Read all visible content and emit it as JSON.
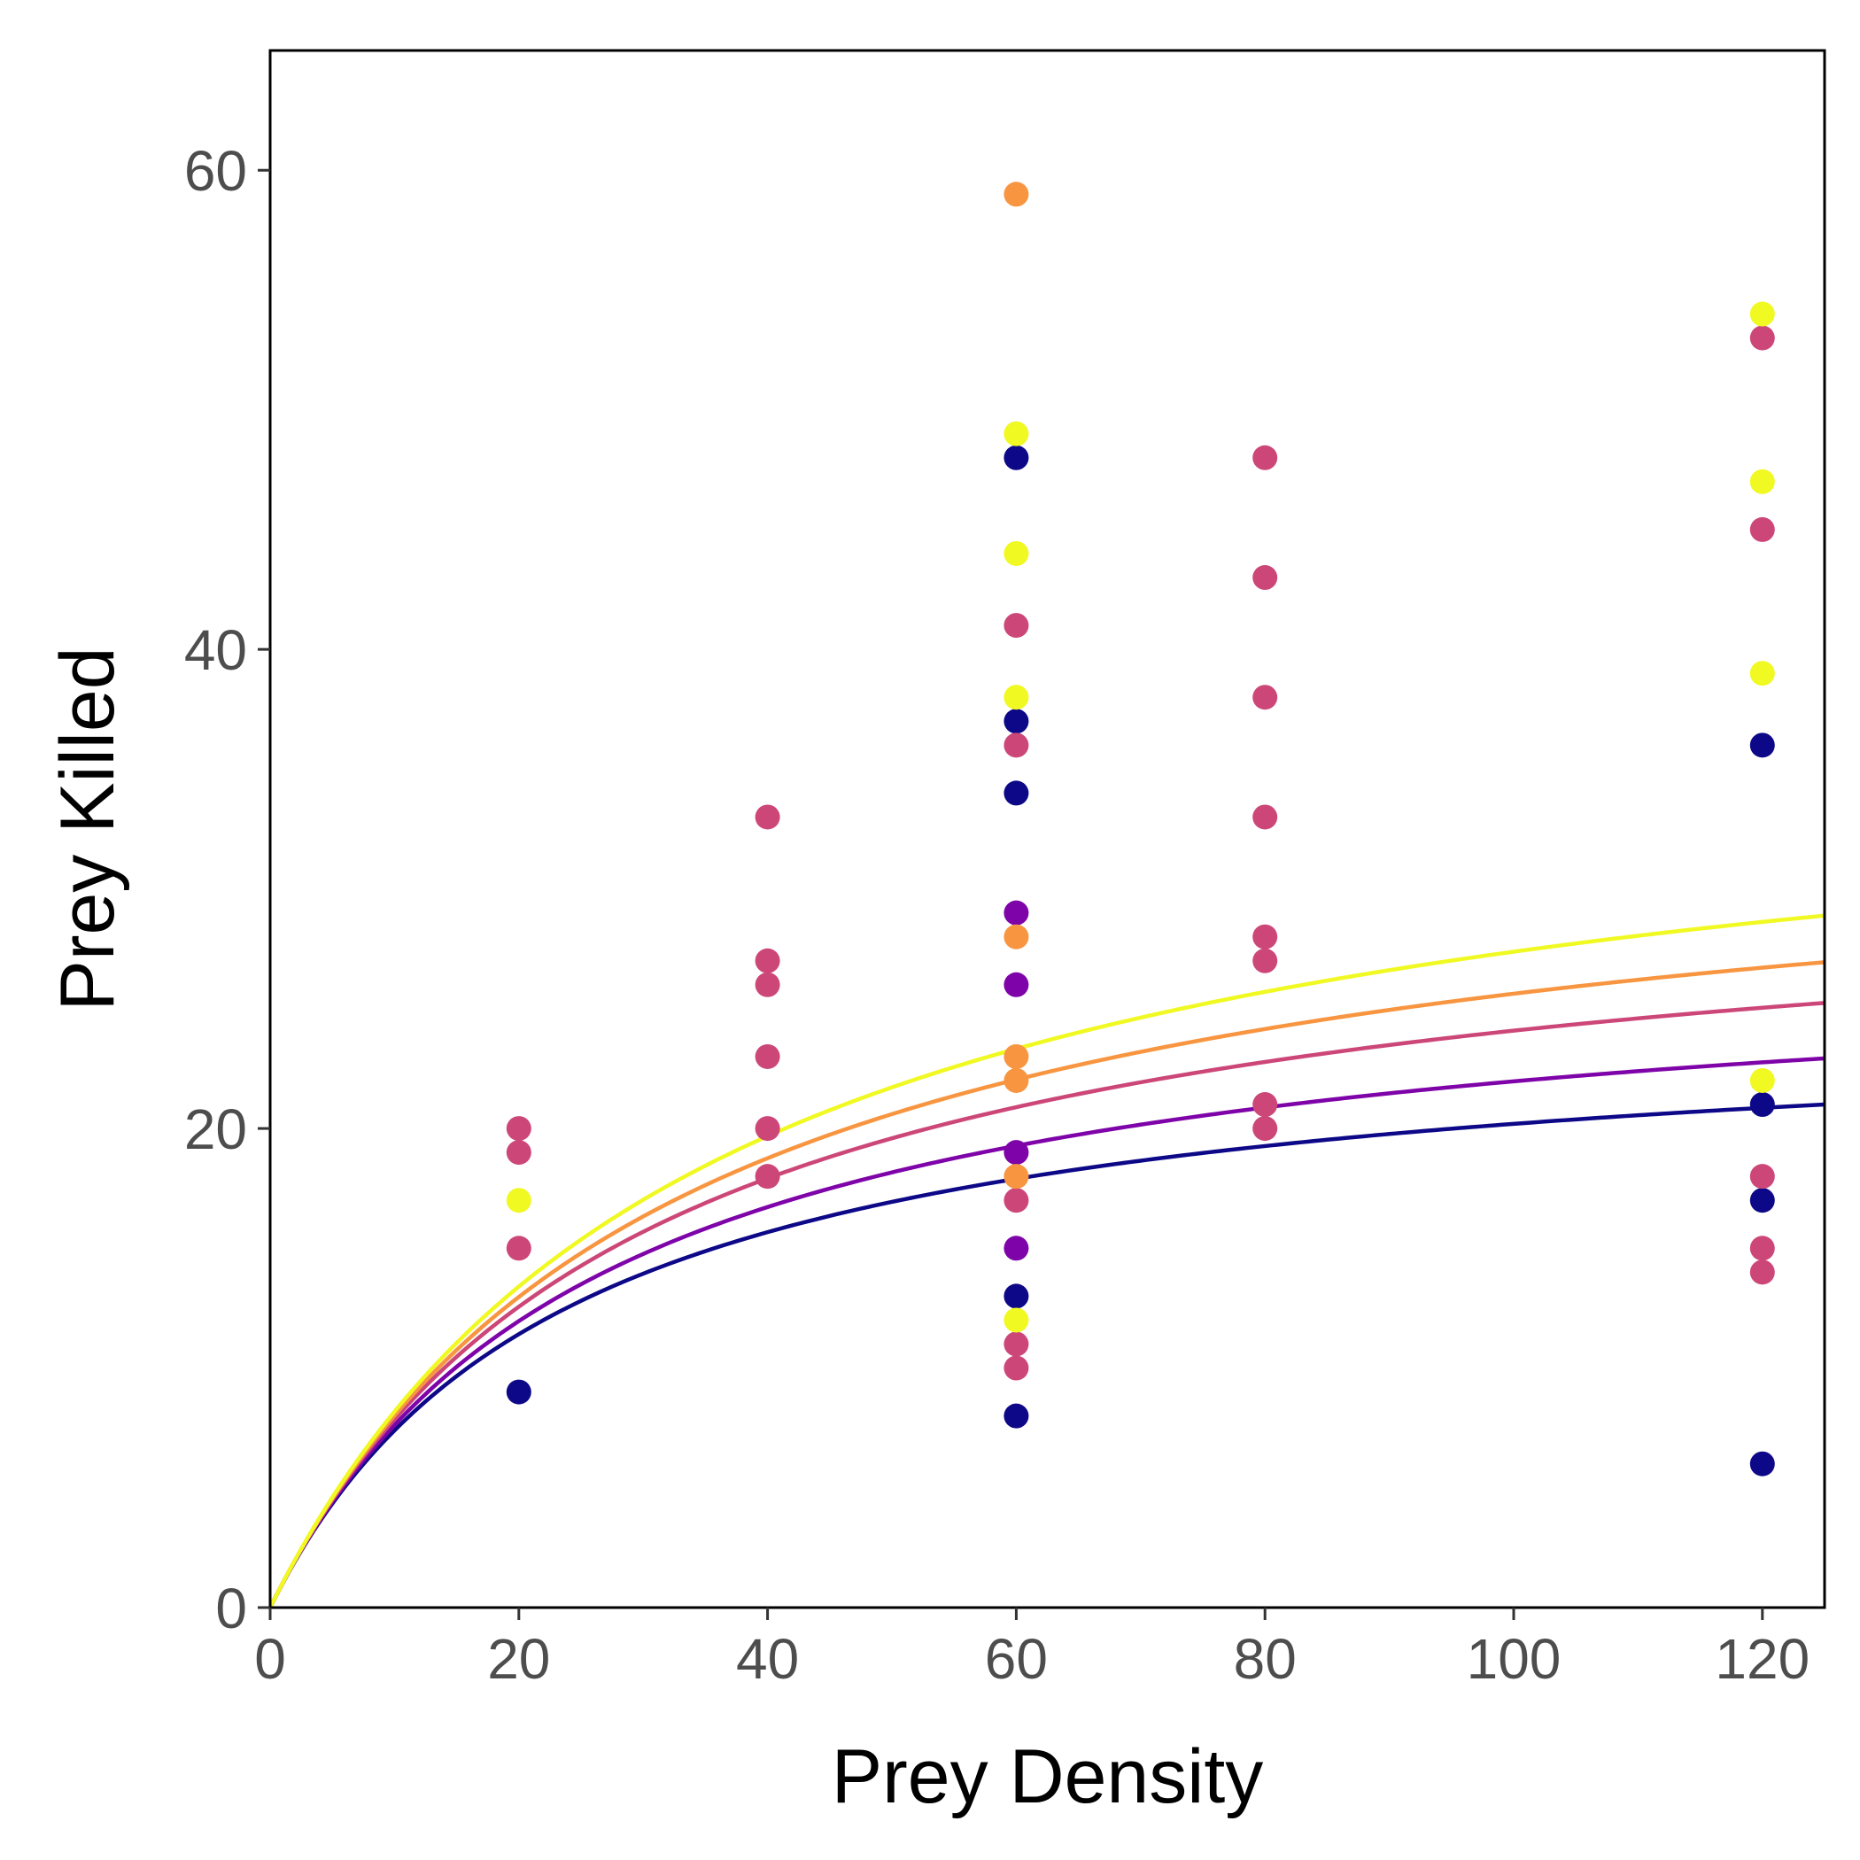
{
  "chart_data": {
    "type": "scatter",
    "xlabel": "Prey Density",
    "ylabel": "Prey Killed",
    "xlim": [
      0,
      125
    ],
    "ylim": [
      0,
      65
    ],
    "x_ticks": [
      0,
      20,
      40,
      60,
      80,
      100,
      120
    ],
    "y_ticks": [
      0,
      20,
      40,
      60
    ],
    "x_tick_labels": [
      "0",
      "20",
      "40",
      "60",
      "80",
      "100",
      "120"
    ],
    "y_tick_labels": [
      "0",
      "20",
      "40",
      "60"
    ],
    "grid": false,
    "legend": "none",
    "series": [
      {
        "color": "#0d0887",
        "points": [
          [
            20,
            9
          ],
          [
            60,
            48
          ],
          [
            60,
            37
          ],
          [
            60,
            34
          ],
          [
            60,
            13
          ],
          [
            60,
            8
          ],
          [
            120,
            36
          ],
          [
            120,
            21
          ],
          [
            120,
            17
          ],
          [
            120,
            6
          ]
        ],
        "curve": {
          "a": 1.05,
          "h": 0.04
        }
      },
      {
        "color": "#7e03a8",
        "points": [
          [
            60,
            29
          ],
          [
            60,
            26
          ],
          [
            60,
            19
          ],
          [
            60,
            15
          ]
        ],
        "curve": {
          "a": 1.05,
          "h": 0.036
        }
      },
      {
        "color": "#cc4778",
        "points": [
          [
            20,
            20
          ],
          [
            20,
            19
          ],
          [
            20,
            15
          ],
          [
            40,
            33
          ],
          [
            40,
            27
          ],
          [
            40,
            26
          ],
          [
            40,
            23
          ],
          [
            40,
            20
          ],
          [
            40,
            18
          ],
          [
            60,
            41
          ],
          [
            60,
            36
          ],
          [
            60,
            17
          ],
          [
            60,
            11
          ],
          [
            60,
            10
          ],
          [
            80,
            48
          ],
          [
            80,
            43
          ],
          [
            80,
            38
          ],
          [
            80,
            33
          ],
          [
            80,
            28
          ],
          [
            80,
            27
          ],
          [
            80,
            21
          ],
          [
            80,
            20
          ],
          [
            120,
            53
          ],
          [
            120,
            45
          ],
          [
            120,
            18
          ],
          [
            120,
            15
          ],
          [
            120,
            14
          ]
        ],
        "curve": {
          "a": 1.05,
          "h": 0.032
        }
      },
      {
        "color": "#f89540",
        "points": [
          [
            60,
            59
          ],
          [
            60,
            28
          ],
          [
            60,
            23
          ],
          [
            60,
            22
          ],
          [
            60,
            18
          ]
        ],
        "curve": {
          "a": 1.05,
          "h": 0.0295
        }
      },
      {
        "color": "#f0f921",
        "points": [
          [
            20,
            17
          ],
          [
            60,
            49
          ],
          [
            60,
            44
          ],
          [
            60,
            38
          ],
          [
            60,
            12
          ],
          [
            120,
            54
          ],
          [
            120,
            47
          ],
          [
            120,
            39
          ],
          [
            120,
            22
          ]
        ],
        "curve": {
          "a": 1.05,
          "h": 0.027
        }
      }
    ]
  }
}
